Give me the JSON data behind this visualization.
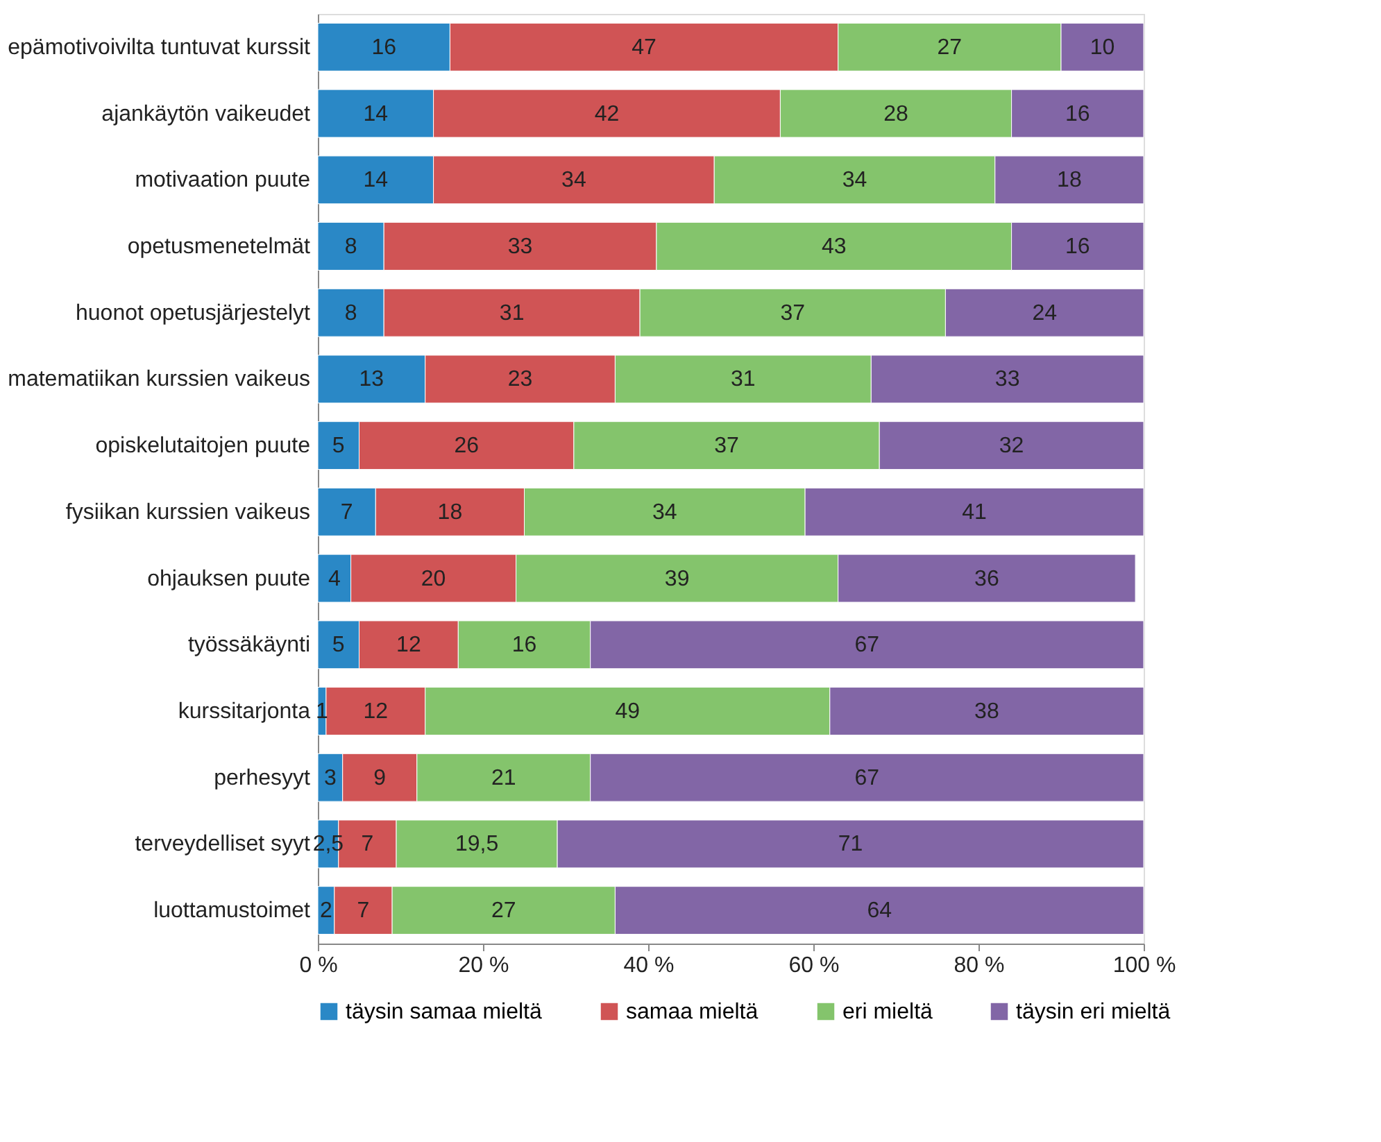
{
  "chart_data": {
    "type": "bar",
    "orientation": "horizontal",
    "stacked": true,
    "legend": "bottom",
    "grid": false,
    "categories": [
      "epämotivoivilta tuntuvat kurssit",
      "ajankäytön vaikeudet",
      "motivaation puute",
      "opetusmenetelmät",
      "huonot opetusjärjestelyt",
      "matematiikan kurssien vaikeus",
      "opiskelutaitojen puute",
      "fysiikan kurssien vaikeus",
      "ohjauksen puute",
      "työssäkäynti",
      "kurssitarjonta",
      "perhesyyt",
      "terveydelliset syyt",
      "luottamustoimet"
    ],
    "xlim": [
      0,
      100
    ],
    "xticks": [
      {
        "value": 0,
        "label": "0 %"
      },
      {
        "value": 20,
        "label": "20 %"
      },
      {
        "value": 40,
        "label": "40 %"
      },
      {
        "value": 60,
        "label": "60 %"
      },
      {
        "value": 80,
        "label": "80 %"
      },
      {
        "value": 100,
        "label": "100 %"
      }
    ],
    "series": [
      {
        "name": "täysin samaa mieltä",
        "color": "#2a88c6",
        "values": [
          16,
          14,
          14,
          8,
          8,
          13,
          5,
          7,
          4,
          5,
          1,
          3,
          2.5,
          2
        ],
        "value_labels": [
          "16",
          "14",
          "14",
          "8",
          "8",
          "13",
          "5",
          "7",
          "4",
          "5",
          "1",
          "3",
          "2,5",
          "2"
        ]
      },
      {
        "name": "samaa mieltä",
        "color": "#d05455",
        "values": [
          47,
          42,
          34,
          33,
          31,
          23,
          26,
          18,
          20,
          12,
          12,
          9,
          7,
          7
        ],
        "value_labels": [
          "47",
          "42",
          "34",
          "33",
          "31",
          "23",
          "26",
          "18",
          "20",
          "12",
          "12",
          "9",
          "7",
          "7"
        ]
      },
      {
        "name": "eri mieltä",
        "color": "#84c46c",
        "values": [
          27,
          28,
          34,
          43,
          37,
          31,
          37,
          34,
          39,
          16,
          49,
          21,
          19.5,
          27
        ],
        "value_labels": [
          "27",
          "28",
          "34",
          "43",
          "37",
          "31",
          "37",
          "34",
          "39",
          "16",
          "49",
          "21",
          "19,5",
          "27"
        ]
      },
      {
        "name": "täysin eri mieltä",
        "color": "#8266a6",
        "values": [
          10,
          16,
          18,
          16,
          24,
          33,
          32,
          41,
          36,
          67,
          38,
          67,
          71,
          64
        ],
        "value_labels": [
          "10",
          "16",
          "18",
          "16",
          "24",
          "33",
          "32",
          "41",
          "36",
          "67",
          "38",
          "67",
          "71",
          "64"
        ]
      }
    ]
  }
}
